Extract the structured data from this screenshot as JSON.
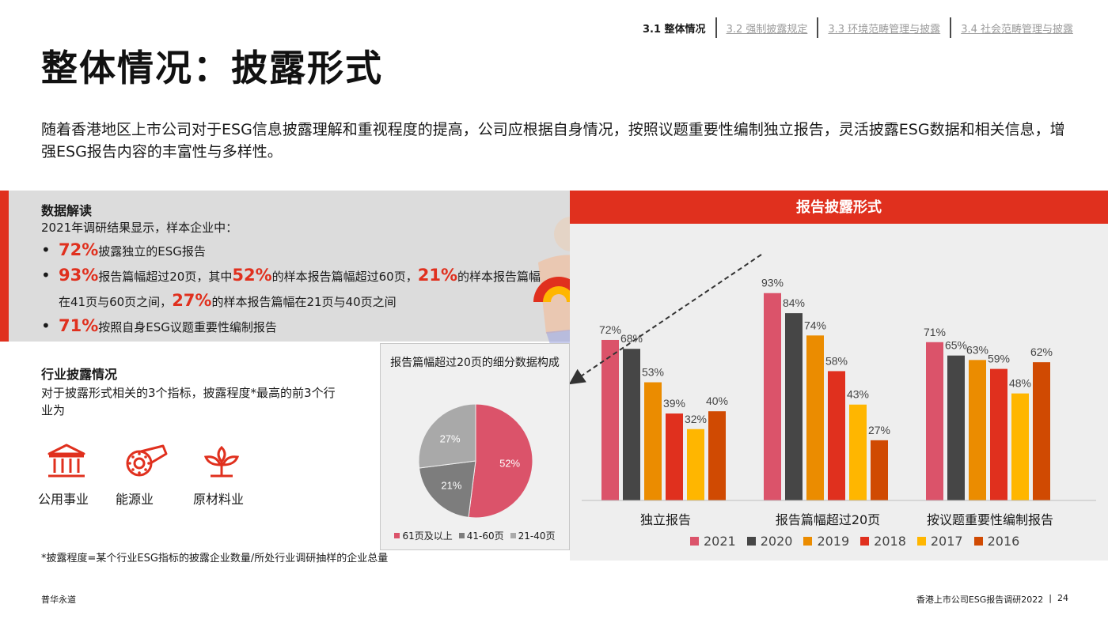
{
  "nav": {
    "items": [
      {
        "label": "3.1 整体情况",
        "active": true
      },
      {
        "label": "3.2 强制披露规定",
        "active": false
      },
      {
        "label": "3.3 环境范畴管理与披露",
        "active": false
      },
      {
        "label": "3.4 社会范畴管理与披露",
        "active": false
      }
    ]
  },
  "page": {
    "title": "整体情况：披露形式",
    "intro": "随着香港地区上市公司对于ESG信息披露理解和重视程度的提高，公司应根据自身情况，按照议题重要性编制独立报告，灵活披露ESG数据和相关信息，增强ESG报告内容的丰富性与多样性。"
  },
  "interpretation": {
    "heading": "数据解读",
    "lead": "2021年调研结果显示，样本企业中：",
    "bullet1": {
      "p1": "72%",
      "t1": "披露独立的ESG报告"
    },
    "bullet2": {
      "p1": "93%",
      "t1": "报告篇幅超过20页，其中",
      "p2": "52%",
      "t2": "的样本报告篇幅超过60页，",
      "p3": "21%",
      "t3": "的样本报告篇幅在41页与60页之间，",
      "p4": "27%",
      "t4": "的样本报告篇幅在21页与40页之间"
    },
    "bullet3": {
      "p1": "71%",
      "t1": "按照自身ESG议题重要性编制报告"
    }
  },
  "industry": {
    "heading": "行业披露情况",
    "desc": "对于披露形式相关的3个指标，披露程度*最高的前3个行业为",
    "items": [
      {
        "label": "公用事业",
        "icon": "building-columns-icon"
      },
      {
        "label": "能源业",
        "icon": "energy-icon"
      },
      {
        "label": "原材料业",
        "icon": "plant-icon"
      }
    ],
    "footnote": "*披露程度=某个行业ESG指标的披露企业数量/所处行业调研抽样的企业总量"
  },
  "colors": {
    "accent": "#e0301e",
    "y2021": "#db536a",
    "y2020": "#464646",
    "y2019": "#eb8c00",
    "y2018": "#e0301e",
    "y2017": "#ffb600",
    "y2016": "#d04a02",
    "pie_61": "#db536a",
    "pie_41": "#7d7d7d",
    "pie_21": "#a9a9a9"
  },
  "chart_data": [
    {
      "type": "bar",
      "title": "报告披露形式",
      "categories": [
        "独立报告",
        "报告篇幅超过20页",
        "按议题重要性编制报告"
      ],
      "series": [
        {
          "name": "2021",
          "values": [
            72,
            93,
            71
          ]
        },
        {
          "name": "2020",
          "values": [
            68,
            84,
            65
          ]
        },
        {
          "name": "2019",
          "values": [
            53,
            74,
            63
          ]
        },
        {
          "name": "2018",
          "values": [
            39,
            58,
            59
          ]
        },
        {
          "name": "2017",
          "values": [
            32,
            43,
            48
          ]
        },
        {
          "name": "2016",
          "values": [
            40,
            27,
            62
          ]
        }
      ],
      "unit": "%",
      "ylim": [
        0,
        100
      ],
      "grid": false,
      "legend": "bottom"
    },
    {
      "type": "pie",
      "title": "报告篇幅超过20页的细分数据构成",
      "slices": [
        {
          "label": "61页及以上",
          "value": 52
        },
        {
          "label": "41-60页",
          "value": 21
        },
        {
          "label": "21-40页",
          "value": 27
        }
      ],
      "unit": "%",
      "legend": "bottom"
    }
  ],
  "footer": {
    "left": "普华永道",
    "right": "香港上市公司ESG报告调研2022",
    "separator": "|",
    "page_number": "24"
  }
}
